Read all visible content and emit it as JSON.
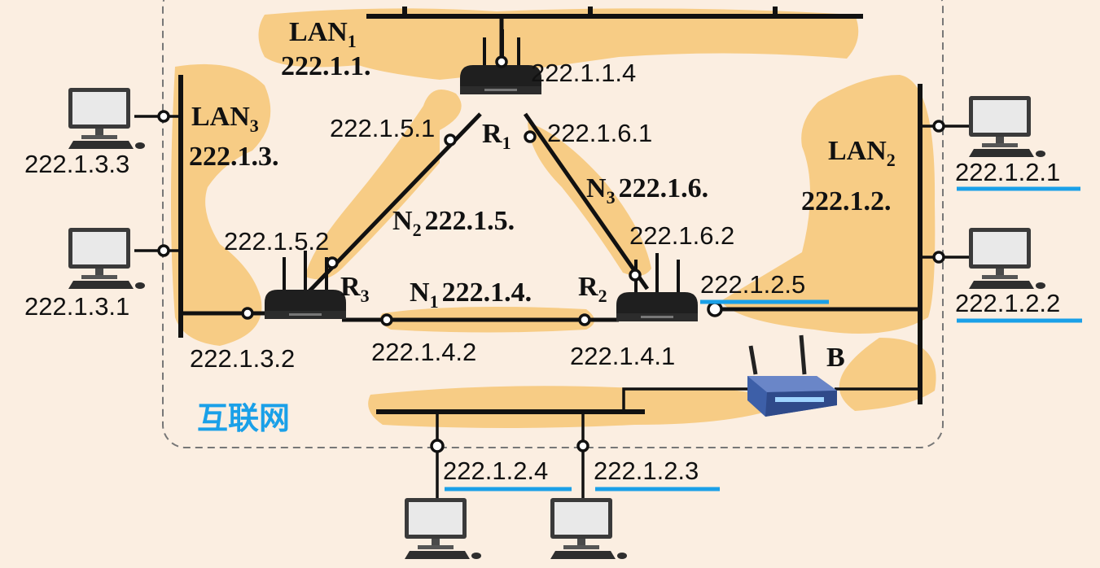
{
  "region": {
    "label": "互联网"
  },
  "lans": {
    "lan1": {
      "name": "LAN",
      "sub": "1",
      "net": "222.1.1."
    },
    "lan2": {
      "name": "LAN",
      "sub": "2",
      "net": "222.1.2."
    },
    "lan3": {
      "name": "LAN",
      "sub": "3",
      "net": "222.1.3."
    }
  },
  "links": {
    "n1": {
      "name": "N",
      "sub": "1",
      "net": "222.1.4."
    },
    "n2": {
      "name": "N",
      "sub": "2",
      "net": "222.1.5."
    },
    "n3": {
      "name": "N",
      "sub": "3",
      "net": "222.1.6."
    }
  },
  "routers": {
    "r1": {
      "name": "R",
      "sub": "1"
    },
    "r2": {
      "name": "R",
      "sub": "2"
    },
    "r3": {
      "name": "R",
      "sub": "3"
    },
    "b": {
      "name": "B"
    }
  },
  "addresses": {
    "a_1_1_4": "222.1.1.4",
    "a_1_5_1": "222.1.5.1",
    "a_1_6_1": "222.1.6.1",
    "a_1_5_2": "222.1.5.2",
    "a_1_6_2": "222.1.6.2",
    "a_1_3_2": "222.1.3.2",
    "a_1_4_2": "222.1.4.2",
    "a_1_4_1": "222.1.4.1",
    "a_1_2_5": "222.1.2.5",
    "a_1_3_3": "222.1.3.3",
    "a_1_3_1": "222.1.3.1",
    "a_1_2_1": "222.1.2.1",
    "a_1_2_2": "222.1.2.2",
    "a_1_2_4": "222.1.2.4",
    "a_1_2_3": "222.1.2.3"
  },
  "colors": {
    "highlight": "#f7cc85",
    "underline": "#1aa0e8",
    "region_label": "#1aa0e8"
  }
}
